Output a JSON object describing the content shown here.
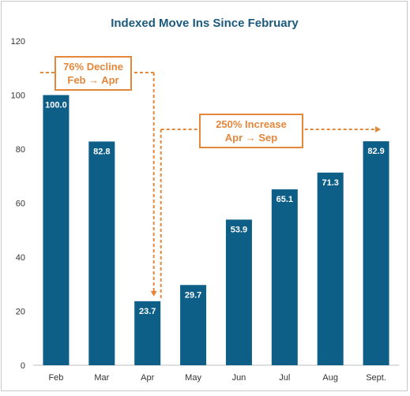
{
  "chart_data": {
    "type": "bar",
    "title": "Indexed Move Ins Since February",
    "categories": [
      "Feb",
      "Mar",
      "Apr",
      "May",
      "Jun",
      "Jul",
      "Aug",
      "Sept."
    ],
    "values": [
      100.0,
      82.8,
      23.7,
      29.7,
      53.9,
      65.1,
      71.3,
      82.9
    ],
    "value_labels": [
      "100.0",
      "82.8",
      "23.7",
      "29.7",
      "53.9",
      "65.1",
      "71.3",
      "82.9"
    ],
    "ylim": [
      0,
      120
    ],
    "yticks": [
      0,
      20,
      40,
      60,
      80,
      100,
      120
    ],
    "grid": false,
    "bar_color": "#0e5f88",
    "annotations": [
      {
        "line1": "76% Decline",
        "line2": "Feb → Apr",
        "from": "Feb",
        "to": "Apr"
      },
      {
        "line1": "250% Increase",
        "line2": "Apr → Sep",
        "from": "Apr",
        "to": "Sept."
      }
    ],
    "annotation_color": "#e3873b"
  }
}
